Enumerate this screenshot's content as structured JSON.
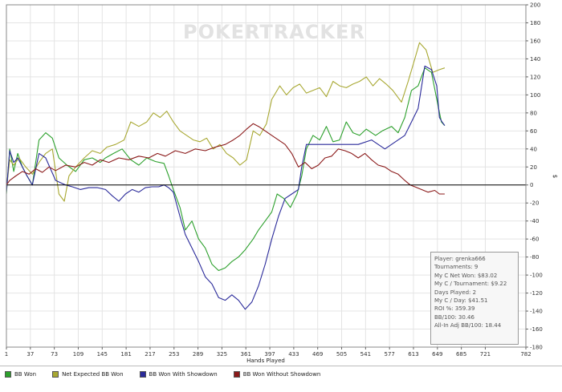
{
  "chart_data": {
    "type": "line",
    "title": "",
    "watermark": "POKERTRACKER",
    "xlabel": "Hands Played",
    "ylabel": "$",
    "xlim": [
      1,
      782
    ],
    "ylim": [
      -180,
      200
    ],
    "x_ticks": [
      1,
      37,
      73,
      109,
      145,
      181,
      217,
      253,
      289,
      325,
      361,
      397,
      433,
      469,
      505,
      541,
      577,
      613,
      649,
      685,
      721,
      782
    ],
    "y_ticks": [
      200,
      180,
      160,
      140,
      120,
      100,
      80,
      60,
      40,
      20,
      0,
      -20,
      -40,
      -60,
      -80,
      -100,
      -120,
      -140,
      -160,
      -180
    ],
    "series": [
      {
        "name": "BB Won",
        "color": "#2ca02c",
        "points": [
          [
            1,
            -10
          ],
          [
            6,
            40
          ],
          [
            12,
            15
          ],
          [
            18,
            35
          ],
          [
            25,
            20
          ],
          [
            32,
            10
          ],
          [
            40,
            0
          ],
          [
            50,
            50
          ],
          [
            60,
            58
          ],
          [
            70,
            52
          ],
          [
            80,
            30
          ],
          [
            92,
            22
          ],
          [
            105,
            15
          ],
          [
            118,
            28
          ],
          [
            130,
            30
          ],
          [
            142,
            25
          ],
          [
            150,
            30
          ],
          [
            162,
            35
          ],
          [
            175,
            40
          ],
          [
            188,
            28
          ],
          [
            200,
            22
          ],
          [
            212,
            30
          ],
          [
            225,
            26
          ],
          [
            238,
            24
          ],
          [
            245,
            10
          ],
          [
            252,
            -5
          ],
          [
            262,
            -25
          ],
          [
            270,
            -50
          ],
          [
            280,
            -40
          ],
          [
            290,
            -60
          ],
          [
            300,
            -70
          ],
          [
            310,
            -88
          ],
          [
            320,
            -95
          ],
          [
            330,
            -92
          ],
          [
            340,
            -85
          ],
          [
            350,
            -80
          ],
          [
            360,
            -72
          ],
          [
            372,
            -60
          ],
          [
            380,
            -50
          ],
          [
            390,
            -40
          ],
          [
            400,
            -30
          ],
          [
            408,
            -10
          ],
          [
            418,
            -15
          ],
          [
            428,
            -25
          ],
          [
            438,
            -10
          ],
          [
            445,
            10
          ],
          [
            452,
            40
          ],
          [
            462,
            55
          ],
          [
            472,
            50
          ],
          [
            482,
            65
          ],
          [
            492,
            48
          ],
          [
            502,
            50
          ],
          [
            512,
            70
          ],
          [
            522,
            58
          ],
          [
            532,
            55
          ],
          [
            542,
            62
          ],
          [
            556,
            55
          ],
          [
            566,
            60
          ],
          [
            580,
            65
          ],
          [
            590,
            58
          ],
          [
            600,
            75
          ],
          [
            610,
            105
          ],
          [
            620,
            110
          ],
          [
            630,
            130
          ],
          [
            640,
            125
          ],
          [
            650,
            88
          ],
          [
            655,
            70
          ],
          [
            660,
            66
          ]
        ]
      },
      {
        "name": "Net Expected BB Won",
        "color": "#a8a832",
        "points": [
          [
            1,
            -5
          ],
          [
            6,
            28
          ],
          [
            12,
            22
          ],
          [
            20,
            30
          ],
          [
            30,
            20
          ],
          [
            40,
            12
          ],
          [
            50,
            25
          ],
          [
            60,
            35
          ],
          [
            70,
            40
          ],
          [
            80,
            -10
          ],
          [
            88,
            -18
          ],
          [
            95,
            10
          ],
          [
            105,
            20
          ],
          [
            118,
            30
          ],
          [
            130,
            38
          ],
          [
            142,
            35
          ],
          [
            152,
            42
          ],
          [
            165,
            45
          ],
          [
            178,
            50
          ],
          [
            188,
            70
          ],
          [
            200,
            65
          ],
          [
            212,
            70
          ],
          [
            222,
            80
          ],
          [
            232,
            75
          ],
          [
            242,
            82
          ],
          [
            252,
            70
          ],
          [
            262,
            60
          ],
          [
            272,
            55
          ],
          [
            282,
            50
          ],
          [
            292,
            48
          ],
          [
            302,
            52
          ],
          [
            312,
            40
          ],
          [
            322,
            45
          ],
          [
            332,
            35
          ],
          [
            342,
            30
          ],
          [
            352,
            22
          ],
          [
            362,
            28
          ],
          [
            372,
            60
          ],
          [
            382,
            55
          ],
          [
            392,
            68
          ],
          [
            400,
            95
          ],
          [
            412,
            110
          ],
          [
            422,
            100
          ],
          [
            432,
            108
          ],
          [
            442,
            112
          ],
          [
            452,
            102
          ],
          [
            462,
            105
          ],
          [
            472,
            108
          ],
          [
            482,
            98
          ],
          [
            492,
            115
          ],
          [
            502,
            110
          ],
          [
            512,
            108
          ],
          [
            522,
            112
          ],
          [
            532,
            115
          ],
          [
            542,
            120
          ],
          [
            552,
            110
          ],
          [
            562,
            118
          ],
          [
            572,
            112
          ],
          [
            582,
            105
          ],
          [
            595,
            92
          ],
          [
            605,
            115
          ],
          [
            615,
            140
          ],
          [
            622,
            158
          ],
          [
            632,
            150
          ],
          [
            642,
            125
          ],
          [
            652,
            128
          ],
          [
            660,
            130
          ]
        ]
      },
      {
        "name": "BB Won With Showdown",
        "color": "#2a2a9a",
        "points": [
          [
            1,
            -8
          ],
          [
            6,
            38
          ],
          [
            12,
            25
          ],
          [
            18,
            30
          ],
          [
            25,
            20
          ],
          [
            32,
            10
          ],
          [
            40,
            0
          ],
          [
            50,
            35
          ],
          [
            60,
            30
          ],
          [
            75,
            5
          ],
          [
            90,
            0
          ],
          [
            100,
            -2
          ],
          [
            112,
            -5
          ],
          [
            125,
            -3
          ],
          [
            138,
            -3
          ],
          [
            150,
            -5
          ],
          [
            160,
            -12
          ],
          [
            170,
            -18
          ],
          [
            180,
            -10
          ],
          [
            190,
            -5
          ],
          [
            200,
            -8
          ],
          [
            210,
            -3
          ],
          [
            220,
            -2
          ],
          [
            230,
            -2
          ],
          [
            238,
            0
          ],
          [
            245,
            -3
          ],
          [
            252,
            -8
          ],
          [
            262,
            -35
          ],
          [
            270,
            -55
          ],
          [
            280,
            -70
          ],
          [
            290,
            -85
          ],
          [
            300,
            -102
          ],
          [
            310,
            -110
          ],
          [
            320,
            -125
          ],
          [
            330,
            -128
          ],
          [
            340,
            -122
          ],
          [
            350,
            -128
          ],
          [
            360,
            -138
          ],
          [
            370,
            -130
          ],
          [
            380,
            -112
          ],
          [
            390,
            -88
          ],
          [
            400,
            -60
          ],
          [
            410,
            -35
          ],
          [
            420,
            -15
          ],
          [
            430,
            -10
          ],
          [
            440,
            -5
          ],
          [
            445,
            20
          ],
          [
            452,
            45
          ],
          [
            470,
            45
          ],
          [
            490,
            45
          ],
          [
            510,
            45
          ],
          [
            530,
            45
          ],
          [
            550,
            50
          ],
          [
            570,
            40
          ],
          [
            590,
            50
          ],
          [
            600,
            55
          ],
          [
            610,
            70
          ],
          [
            620,
            85
          ],
          [
            630,
            132
          ],
          [
            640,
            128
          ],
          [
            648,
            110
          ],
          [
            652,
            75
          ],
          [
            656,
            70
          ],
          [
            660,
            66
          ]
        ]
      },
      {
        "name": "BB Won Without Showdown",
        "color": "#8b1a1a",
        "points": [
          [
            1,
            0
          ],
          [
            6,
            5
          ],
          [
            15,
            10
          ],
          [
            25,
            15
          ],
          [
            35,
            12
          ],
          [
            45,
            18
          ],
          [
            55,
            14
          ],
          [
            65,
            20
          ],
          [
            75,
            16
          ],
          [
            90,
            22
          ],
          [
            105,
            20
          ],
          [
            118,
            25
          ],
          [
            130,
            22
          ],
          [
            142,
            28
          ],
          [
            155,
            25
          ],
          [
            170,
            30
          ],
          [
            185,
            28
          ],
          [
            200,
            32
          ],
          [
            215,
            30
          ],
          [
            228,
            35
          ],
          [
            240,
            32
          ],
          [
            255,
            38
          ],
          [
            270,
            35
          ],
          [
            285,
            40
          ],
          [
            300,
            38
          ],
          [
            315,
            42
          ],
          [
            330,
            45
          ],
          [
            342,
            50
          ],
          [
            352,
            55
          ],
          [
            362,
            62
          ],
          [
            372,
            68
          ],
          [
            380,
            65
          ],
          [
            390,
            60
          ],
          [
            400,
            55
          ],
          [
            410,
            50
          ],
          [
            420,
            45
          ],
          [
            430,
            35
          ],
          [
            440,
            20
          ],
          [
            450,
            25
          ],
          [
            460,
            18
          ],
          [
            470,
            22
          ],
          [
            480,
            30
          ],
          [
            490,
            32
          ],
          [
            500,
            40
          ],
          [
            510,
            38
          ],
          [
            520,
            35
          ],
          [
            530,
            30
          ],
          [
            540,
            35
          ],
          [
            550,
            28
          ],
          [
            560,
            22
          ],
          [
            570,
            20
          ],
          [
            580,
            15
          ],
          [
            590,
            12
          ],
          [
            600,
            5
          ],
          [
            608,
            0
          ],
          [
            615,
            -2
          ],
          [
            625,
            -5
          ],
          [
            635,
            -8
          ],
          [
            645,
            -6
          ],
          [
            652,
            -10
          ],
          [
            660,
            -10
          ]
        ]
      }
    ],
    "stats": [
      "Player: grenka666",
      "Tournaments: 9",
      "My C Net Won: $83.02",
      "My C / Tournament: $9.22",
      "Days Played: 2",
      "My C / Day: $41.51",
      "ROI %: 359.39",
      "BB/100: 30.46",
      "All-In Adj BB/100: 18.44"
    ],
    "legend_labels": [
      "BB Won",
      "Net Expected BB Won",
      "BB Won With Showdown",
      "BB Won Without Showdown"
    ]
  }
}
